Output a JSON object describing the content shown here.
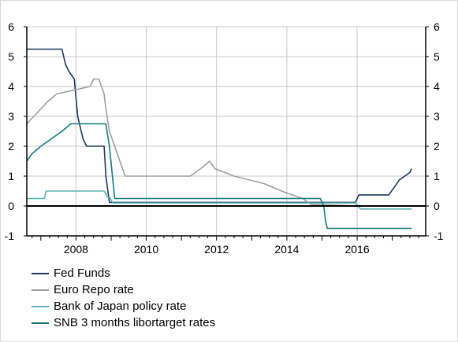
{
  "chart_data": {
    "type": "line",
    "title": "",
    "xlabel": "",
    "ylabel": "",
    "xlim": [
      2006.6,
      2017.95
    ],
    "ylim": [
      -1,
      6
    ],
    "x_ticks": [
      2008,
      2010,
      2012,
      2014,
      2016
    ],
    "x_tick_labels": [
      "2008",
      "2010",
      "2012",
      "2014",
      "2016"
    ],
    "y_ticks": [
      -1,
      0,
      1,
      2,
      3,
      4,
      5,
      6
    ],
    "y_tick_labels": [
      "-1",
      "0",
      "1",
      "2",
      "3",
      "4",
      "5",
      "6"
    ],
    "grid": true,
    "legend_position": "bottom",
    "series": [
      {
        "name": "Fed Funds",
        "color": "#1f3a5f",
        "x": [
          2006.6,
          2007.6,
          2007.7,
          2007.8,
          2007.95,
          2008.05,
          2008.2,
          2008.3,
          2008.35,
          2008.8,
          2008.85,
          2008.95,
          2015.95,
          2016.05,
          2016.9,
          2017.05,
          2017.2,
          2017.5,
          2017.55
        ],
        "y": [
          5.25,
          5.25,
          4.75,
          4.5,
          4.25,
          3.0,
          2.25,
          2.0,
          2.0,
          2.0,
          1.0,
          0.12,
          0.12,
          0.37,
          0.37,
          0.62,
          0.87,
          1.12,
          1.25
        ]
      },
      {
        "name": "Euro Repo rate",
        "color": "#a0a0a0",
        "x": [
          2006.6,
          2006.8,
          2007.0,
          2007.2,
          2007.45,
          2008.4,
          2008.5,
          2008.65,
          2008.8,
          2008.85,
          2008.95,
          2009.1,
          2009.25,
          2009.4,
          2011.25,
          2011.55,
          2011.8,
          2011.95,
          2012.5,
          2013.35,
          2013.85,
          2014.45,
          2014.7,
          2016.2,
          2017.55
        ],
        "y": [
          2.75,
          3.0,
          3.25,
          3.5,
          3.75,
          4.0,
          4.25,
          4.25,
          3.75,
          3.25,
          2.5,
          2.0,
          1.5,
          1.0,
          1.0,
          1.25,
          1.5,
          1.25,
          1.0,
          0.75,
          0.5,
          0.25,
          0.05,
          0.0,
          0.0
        ]
      },
      {
        "name": "Bank of Japan policy rate",
        "color": "#5cb5b0",
        "x": [
          2006.6,
          2006.65,
          2007.1,
          2007.15,
          2008.8,
          2008.9,
          2008.95,
          2009.05,
          2011.6,
          2011.7,
          2015.95,
          2016.1,
          2017.55
        ],
        "y": [
          0.25,
          0.25,
          0.25,
          0.5,
          0.5,
          0.3,
          0.3,
          0.1,
          0.1,
          0.1,
          0.1,
          -0.1,
          -0.1
        ]
      },
      {
        "name": "SNB 3 months libortarget rates",
        "color": "#1a7a7a",
        "x": [
          2006.6,
          2006.75,
          2007.0,
          2007.3,
          2007.6,
          2007.85,
          2008.85,
          2008.95,
          2009.1,
          2014.95,
          2015.05,
          2015.1,
          2015.15,
          2017.55
        ],
        "y": [
          1.5,
          1.75,
          2.0,
          2.25,
          2.5,
          2.75,
          2.75,
          2.0,
          0.25,
          0.25,
          0.0,
          -0.5,
          -0.75,
          -0.75
        ]
      }
    ]
  }
}
